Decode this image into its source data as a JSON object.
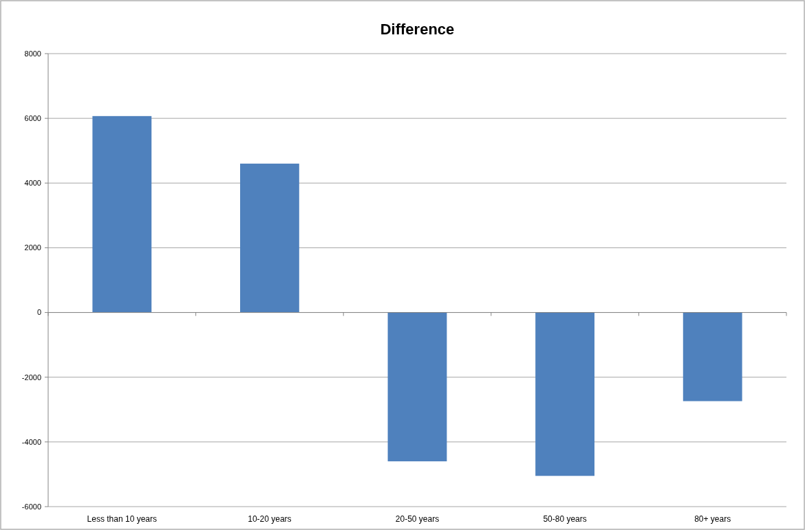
{
  "chart_data": {
    "type": "bar",
    "title": "Difference",
    "categories": [
      "Less than 10 years",
      "10-20 years",
      "20-50 years",
      "50-80 years",
      "80+ years"
    ],
    "values": [
      6070,
      4600,
      -4600,
      -5050,
      -2740
    ],
    "color": "#4f81bd",
    "ylim": [
      -6000,
      8000
    ],
    "yticks": [
      -6000,
      -4000,
      -2000,
      0,
      2000,
      4000,
      6000,
      8000
    ],
    "grid": "y"
  }
}
